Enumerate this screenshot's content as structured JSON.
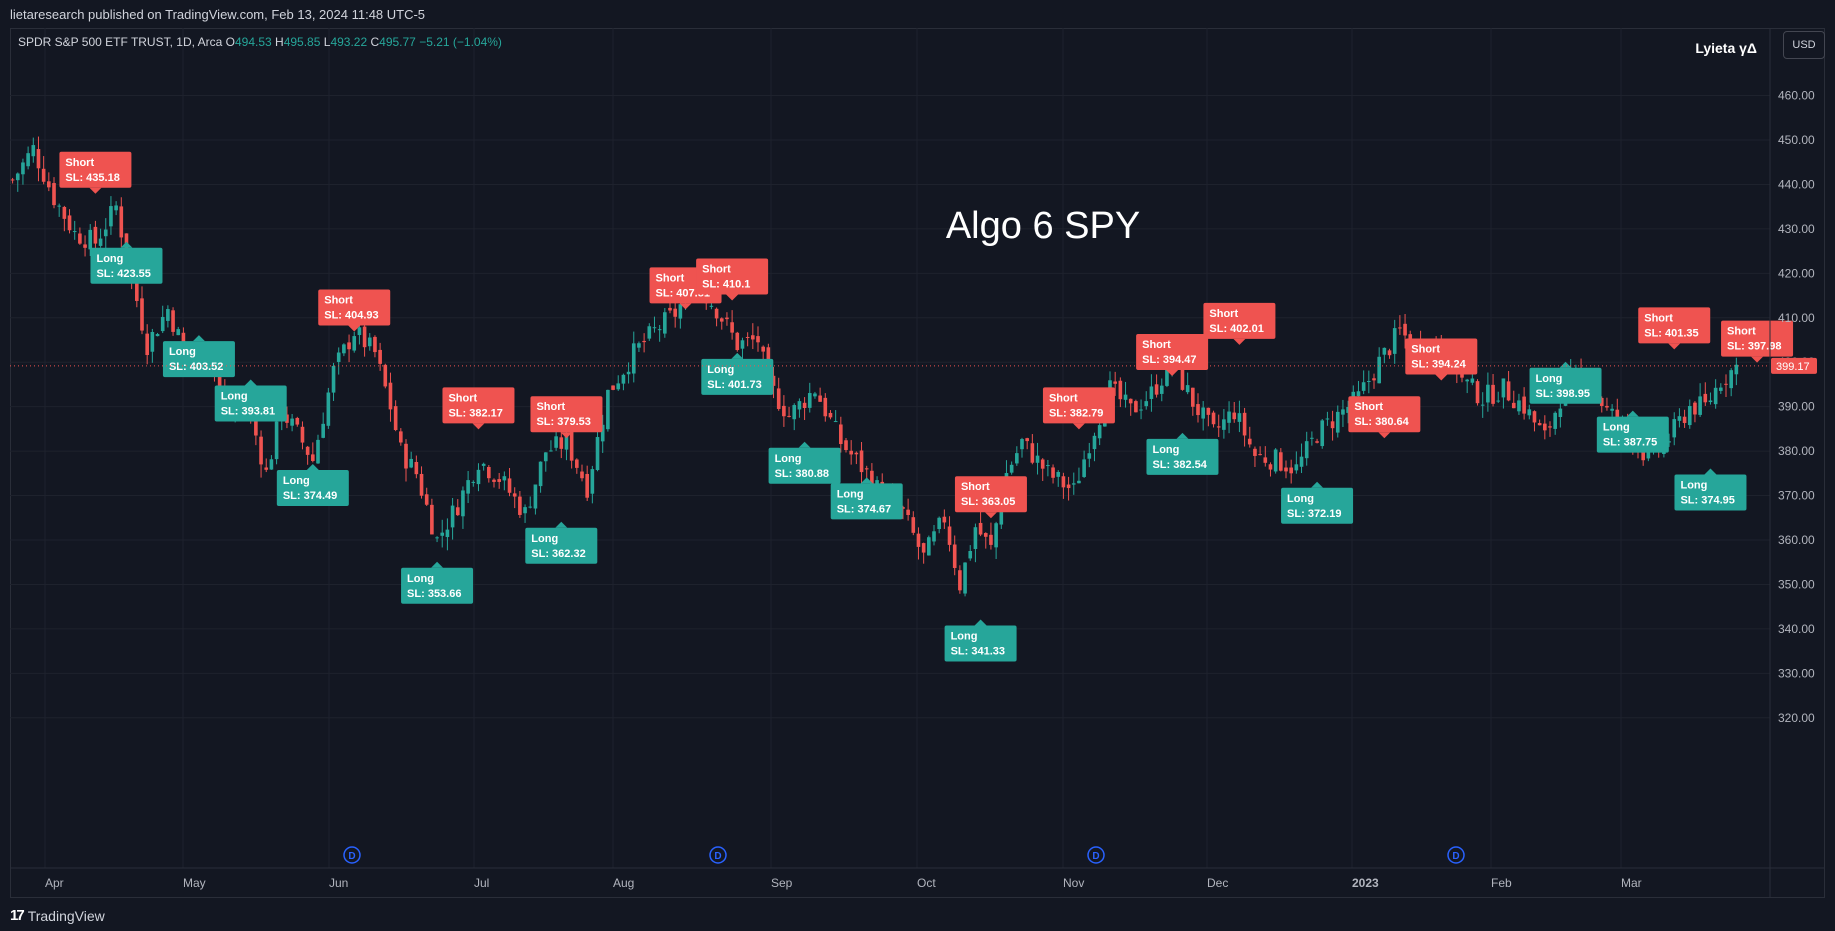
{
  "header": {
    "published_text": "lietaresearch published on TradingView.com, Feb 13, 2024 11:48 UTC-5"
  },
  "legend": {
    "symbol": "SPDR S&P 500 ETF TRUST, 1D, Arca",
    "o_label": "O",
    "o_value": "494.53",
    "h_label": "H",
    "h_value": "495.85",
    "l_label": "L",
    "l_value": "493.22",
    "c_label": "C",
    "c_value": "495.77",
    "change": "−5.21 (−1.04%)"
  },
  "indicator_name": "Lyieta γΔ",
  "currency_button": "USD",
  "annotation_title": "Algo 6 SPY",
  "current_price": "399.17",
  "colors": {
    "up": "#26a69a",
    "down": "#ef5350",
    "background": "#131722",
    "grid": "#1e222d",
    "event": "#2962ff"
  },
  "chart_data": {
    "type": "candlestick",
    "ylim": [
      315,
      468
    ],
    "y_ticks": [
      "320.00",
      "330.00",
      "340.00",
      "350.00",
      "360.00",
      "370.00",
      "380.00",
      "390.00",
      "400.00",
      "410.00",
      "420.00",
      "430.00",
      "440.00",
      "450.00",
      "460.00"
    ],
    "x_ticks": [
      "Apr",
      "May",
      "Jun",
      "Jul",
      "Aug",
      "Sep",
      "Oct",
      "Nov",
      "Dec",
      "2023",
      "Feb",
      "Mar"
    ],
    "event_markers": [
      "D",
      "D",
      "D",
      "D"
    ],
    "price_path": [
      [
        0,
        441
      ],
      [
        4,
        448
      ],
      [
        8,
        437
      ],
      [
        12,
        429
      ],
      [
        16,
        427
      ],
      [
        20,
        435
      ],
      [
        22,
        424
      ],
      [
        26,
        404
      ],
      [
        30,
        412
      ],
      [
        34,
        400
      ],
      [
        38,
        404
      ],
      [
        41,
        388
      ],
      [
        45,
        392
      ],
      [
        49,
        375
      ],
      [
        52,
        389
      ],
      [
        55,
        384
      ],
      [
        58,
        378
      ],
      [
        62,
        398
      ],
      [
        66,
        407
      ],
      [
        70,
        402
      ],
      [
        73,
        390
      ],
      [
        75,
        380
      ],
      [
        78,
        375
      ],
      [
        82,
        360
      ],
      [
        86,
        368
      ],
      [
        90,
        378
      ],
      [
        94,
        374
      ],
      [
        99,
        366
      ],
      [
        103,
        380
      ],
      [
        107,
        382
      ],
      [
        111,
        372
      ],
      [
        115,
        393
      ],
      [
        120,
        402
      ],
      [
        124,
        407
      ],
      [
        128,
        411
      ],
      [
        132,
        418
      ],
      [
        136,
        412
      ],
      [
        140,
        404
      ],
      [
        144,
        405
      ],
      [
        146,
        395
      ],
      [
        150,
        388
      ],
      [
        155,
        394
      ],
      [
        160,
        382
      ],
      [
        165,
        375
      ],
      [
        168,
        370
      ],
      [
        172,
        366
      ],
      [
        176,
        356
      ],
      [
        180,
        365
      ],
      [
        183,
        350
      ],
      [
        186,
        363
      ],
      [
        189,
        358
      ],
      [
        192,
        375
      ],
      [
        195,
        382
      ],
      [
        200,
        375
      ],
      [
        205,
        371
      ],
      [
        208,
        382
      ],
      [
        212,
        394
      ],
      [
        216,
        389
      ],
      [
        220,
        393
      ],
      [
        224,
        400
      ],
      [
        228,
        391
      ],
      [
        232,
        384
      ],
      [
        236,
        389
      ],
      [
        240,
        379
      ],
      [
        244,
        378
      ],
      [
        248,
        376
      ],
      [
        252,
        384
      ],
      [
        256,
        388
      ],
      [
        260,
        392
      ],
      [
        264,
        400
      ],
      [
        268,
        407
      ],
      [
        272,
        402
      ],
      [
        276,
        406
      ],
      [
        280,
        396
      ],
      [
        284,
        392
      ],
      [
        288,
        394
      ],
      [
        292,
        390
      ],
      [
        296,
        383
      ],
      [
        300,
        395
      ],
      [
        304,
        397
      ],
      [
        308,
        389
      ],
      [
        312,
        385
      ],
      [
        316,
        378
      ],
      [
        320,
        383
      ],
      [
        324,
        390
      ],
      [
        327,
        390
      ],
      [
        330,
        396
      ],
      [
        333,
        399
      ]
    ],
    "signals": [
      {
        "type": "Short",
        "label": "Short",
        "sl": "SL: 435.18",
        "candle": 16,
        "price": 437
      },
      {
        "type": "Long",
        "label": "Long",
        "sl": "SL: 423.55",
        "candle": 22,
        "price": 428
      },
      {
        "type": "Short",
        "label": "Short",
        "sl": "SL: 404.93",
        "candle": 66,
        "price": 406
      },
      {
        "type": "Long",
        "label": "Long",
        "sl": "SL: 403.52",
        "candle": 36,
        "price": 407
      },
      {
        "type": "Long",
        "label": "Long",
        "sl": "SL: 393.81",
        "candle": 46,
        "price": 397
      },
      {
        "type": "Long",
        "label": "Long",
        "sl": "SL: 374.49",
        "candle": 58,
        "price": 378
      },
      {
        "type": "Long",
        "label": "Long",
        "sl": "SL: 353.66",
        "candle": 82,
        "price": 356
      },
      {
        "type": "Short",
        "label": "Short",
        "sl": "SL: 382.17",
        "candle": 90,
        "price": 384
      },
      {
        "type": "Short",
        "label": "Short",
        "sl": "SL: 379.53",
        "candle": 107,
        "price": 382
      },
      {
        "type": "Long",
        "label": "Long",
        "sl": "SL: 362.32",
        "candle": 106,
        "price": 365
      },
      {
        "type": "Short",
        "label": "Short",
        "sl": "SL: 407.81",
        "candle": 130,
        "price": 411
      },
      {
        "type": "Short",
        "label": "Short",
        "sl": "SL: 410.1",
        "candle": 139,
        "price": 413
      },
      {
        "type": "Long",
        "label": "Long",
        "sl": "SL: 401.73",
        "candle": 140,
        "price": 403
      },
      {
        "type": "Long",
        "label": "Long",
        "sl": "SL: 380.88",
        "candle": 153,
        "price": 383
      },
      {
        "type": "Long",
        "label": "Long",
        "sl": "SL: 374.67",
        "candle": 165,
        "price": 375
      },
      {
        "type": "Short",
        "label": "Short",
        "sl": "SL: 363.05",
        "candle": 189,
        "price": 364
      },
      {
        "type": "Long",
        "label": "Long",
        "sl": "SL: 341.33",
        "candle": 187,
        "price": 343
      },
      {
        "type": "Short",
        "label": "Short",
        "sl": "SL: 382.79",
        "candle": 206,
        "price": 384
      },
      {
        "type": "Short",
        "label": "Short",
        "sl": "SL: 394.47",
        "candle": 224,
        "price": 396
      },
      {
        "type": "Long",
        "label": "Long",
        "sl": "SL: 382.54",
        "candle": 226,
        "price": 385
      },
      {
        "type": "Short",
        "label": "Short",
        "sl": "SL: 402.01",
        "candle": 237,
        "price": 403
      },
      {
        "type": "Short",
        "label": "Short",
        "sl": "SL: 380.64",
        "candle": 265,
        "price": 382
      },
      {
        "type": "Long",
        "label": "Long",
        "sl": "SL: 372.19",
        "candle": 252,
        "price": 374
      },
      {
        "type": "Short",
        "label": "Short",
        "sl": "SL: 394.24",
        "candle": 276,
        "price": 395
      },
      {
        "type": "Long",
        "label": "Long",
        "sl": "SL: 398.95",
        "candle": 300,
        "price": 401
      },
      {
        "type": "Long",
        "label": "Long",
        "sl": "SL: 387.75",
        "candle": 313,
        "price": 390
      },
      {
        "type": "Short",
        "label": "Short",
        "sl": "SL: 401.35",
        "candle": 321,
        "price": 402
      },
      {
        "type": "Short",
        "label": "Short",
        "sl": "SL: 397.98",
        "candle": 337,
        "price": 399
      },
      {
        "type": "Long",
        "label": "Long",
        "sl": "SL: 374.95",
        "candle": 328,
        "price": 377
      }
    ]
  }
}
